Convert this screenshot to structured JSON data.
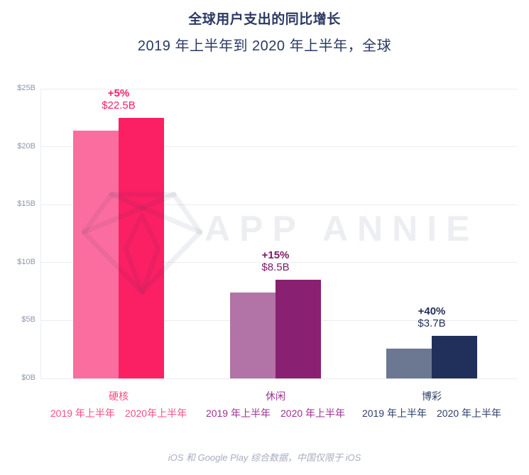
{
  "header": {
    "title": "全球用户支出的同比增长",
    "subtitle": "2019 年上半年到 2020 年上半年，全球"
  },
  "watermark": {
    "text": "APP ANNIE",
    "logo": "diamond-gem"
  },
  "footer": {
    "note": "iOS 和 Google Play 综合数据，中国仅限于 iOS"
  },
  "colors": {
    "title_navy": "#2B3A64",
    "axis_label_gray": "#8E96AC",
    "gridline_gray": "#EBEDF2",
    "footer_gray": "#A6ADC2",
    "brand_pink": "#FB1F63"
  },
  "chart_data": {
    "type": "bar",
    "title": "全球用户支出的同比增长",
    "subtitle": "2019 年上半年到 2020 年上半年，全球",
    "unit": "USD billions",
    "ylim": [
      0,
      25
    ],
    "grid": true,
    "legend_position": "none",
    "yticks": [
      {
        "value": 0,
        "label": "$0B"
      },
      {
        "value": 5,
        "label": "$5B"
      },
      {
        "value": 10,
        "label": "$10B"
      },
      {
        "value": 15,
        "label": "$15B"
      },
      {
        "value": 20,
        "label": "$20B"
      },
      {
        "value": 25,
        "label": "$25B"
      }
    ],
    "categories": [
      "硬核",
      "休闲",
      "博彩"
    ],
    "series": [
      {
        "name": "2019 年上半年",
        "values": [
          21.4,
          7.4,
          2.6
        ]
      },
      {
        "name": "2020 年上半年",
        "values": [
          22.5,
          8.5,
          3.7
        ]
      }
    ],
    "groups": [
      {
        "slug": "hardcore",
        "category": "硬核",
        "bars": [
          {
            "label": "2019 年上半年",
            "value": 21.4,
            "color": "#FB6D9E"
          },
          {
            "label": "2020年上半年",
            "value": 22.5,
            "color": "#FB1F63"
          }
        ],
        "growth": "+5%",
        "value_label": "$22.5B",
        "annotation_color": "#FB1F63",
        "label_color": "#FB4D82"
      },
      {
        "slug": "casual",
        "category": "休闲",
        "bars": [
          {
            "label": "2019 年上半年",
            "value": 7.4,
            "color": "#B273A6"
          },
          {
            "label": "2020 年上半年",
            "value": 8.5,
            "color": "#8A2072"
          }
        ],
        "growth": "+15%",
        "value_label": "$8.5B",
        "annotation_color": "#7C1B60",
        "label_color": "#9C3191"
      },
      {
        "slug": "casino",
        "category": "博彩",
        "bars": [
          {
            "label": "2019 年上半年",
            "value": 2.6,
            "color": "#6C7891"
          },
          {
            "label": "2020 年上半年",
            "value": 3.7,
            "color": "#20305A"
          }
        ],
        "growth": "+40%",
        "value_label": "$3.7B",
        "annotation_color": "#22315C",
        "label_color": "#2E3F6B"
      }
    ]
  }
}
